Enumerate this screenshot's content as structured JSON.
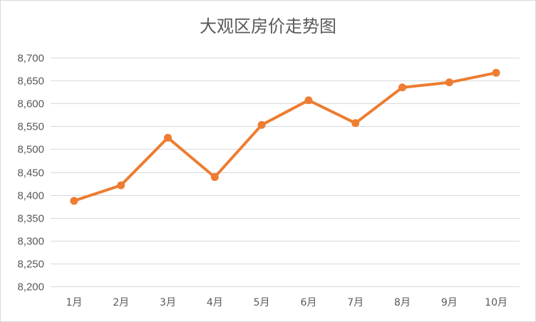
{
  "chart_data": {
    "type": "line",
    "title": "大观区房价走势图",
    "xlabel": "",
    "ylabel": "",
    "categories": [
      "1月",
      "2月",
      "3月",
      "4月",
      "5月",
      "6月",
      "7月",
      "8月",
      "9月",
      "10月"
    ],
    "series": [
      {
        "values": [
          8387,
          8421,
          8525,
          8439,
          8553,
          8607,
          8557,
          8635,
          8646,
          8667
        ]
      }
    ],
    "ylim": [
      8200,
      8700
    ],
    "yticks": [
      8200,
      8250,
      8300,
      8350,
      8400,
      8450,
      8500,
      8550,
      8600,
      8650,
      8700
    ],
    "ytick_labels": [
      "8,200",
      "8,250",
      "8,300",
      "8,350",
      "8,400",
      "8,450",
      "8,500",
      "8,550",
      "8,600",
      "8,650",
      "8,700"
    ],
    "grid": true,
    "legend": "none",
    "colors": {
      "line": "#ED7D31",
      "grid": "#D9D9D9",
      "text": "#595959"
    }
  }
}
